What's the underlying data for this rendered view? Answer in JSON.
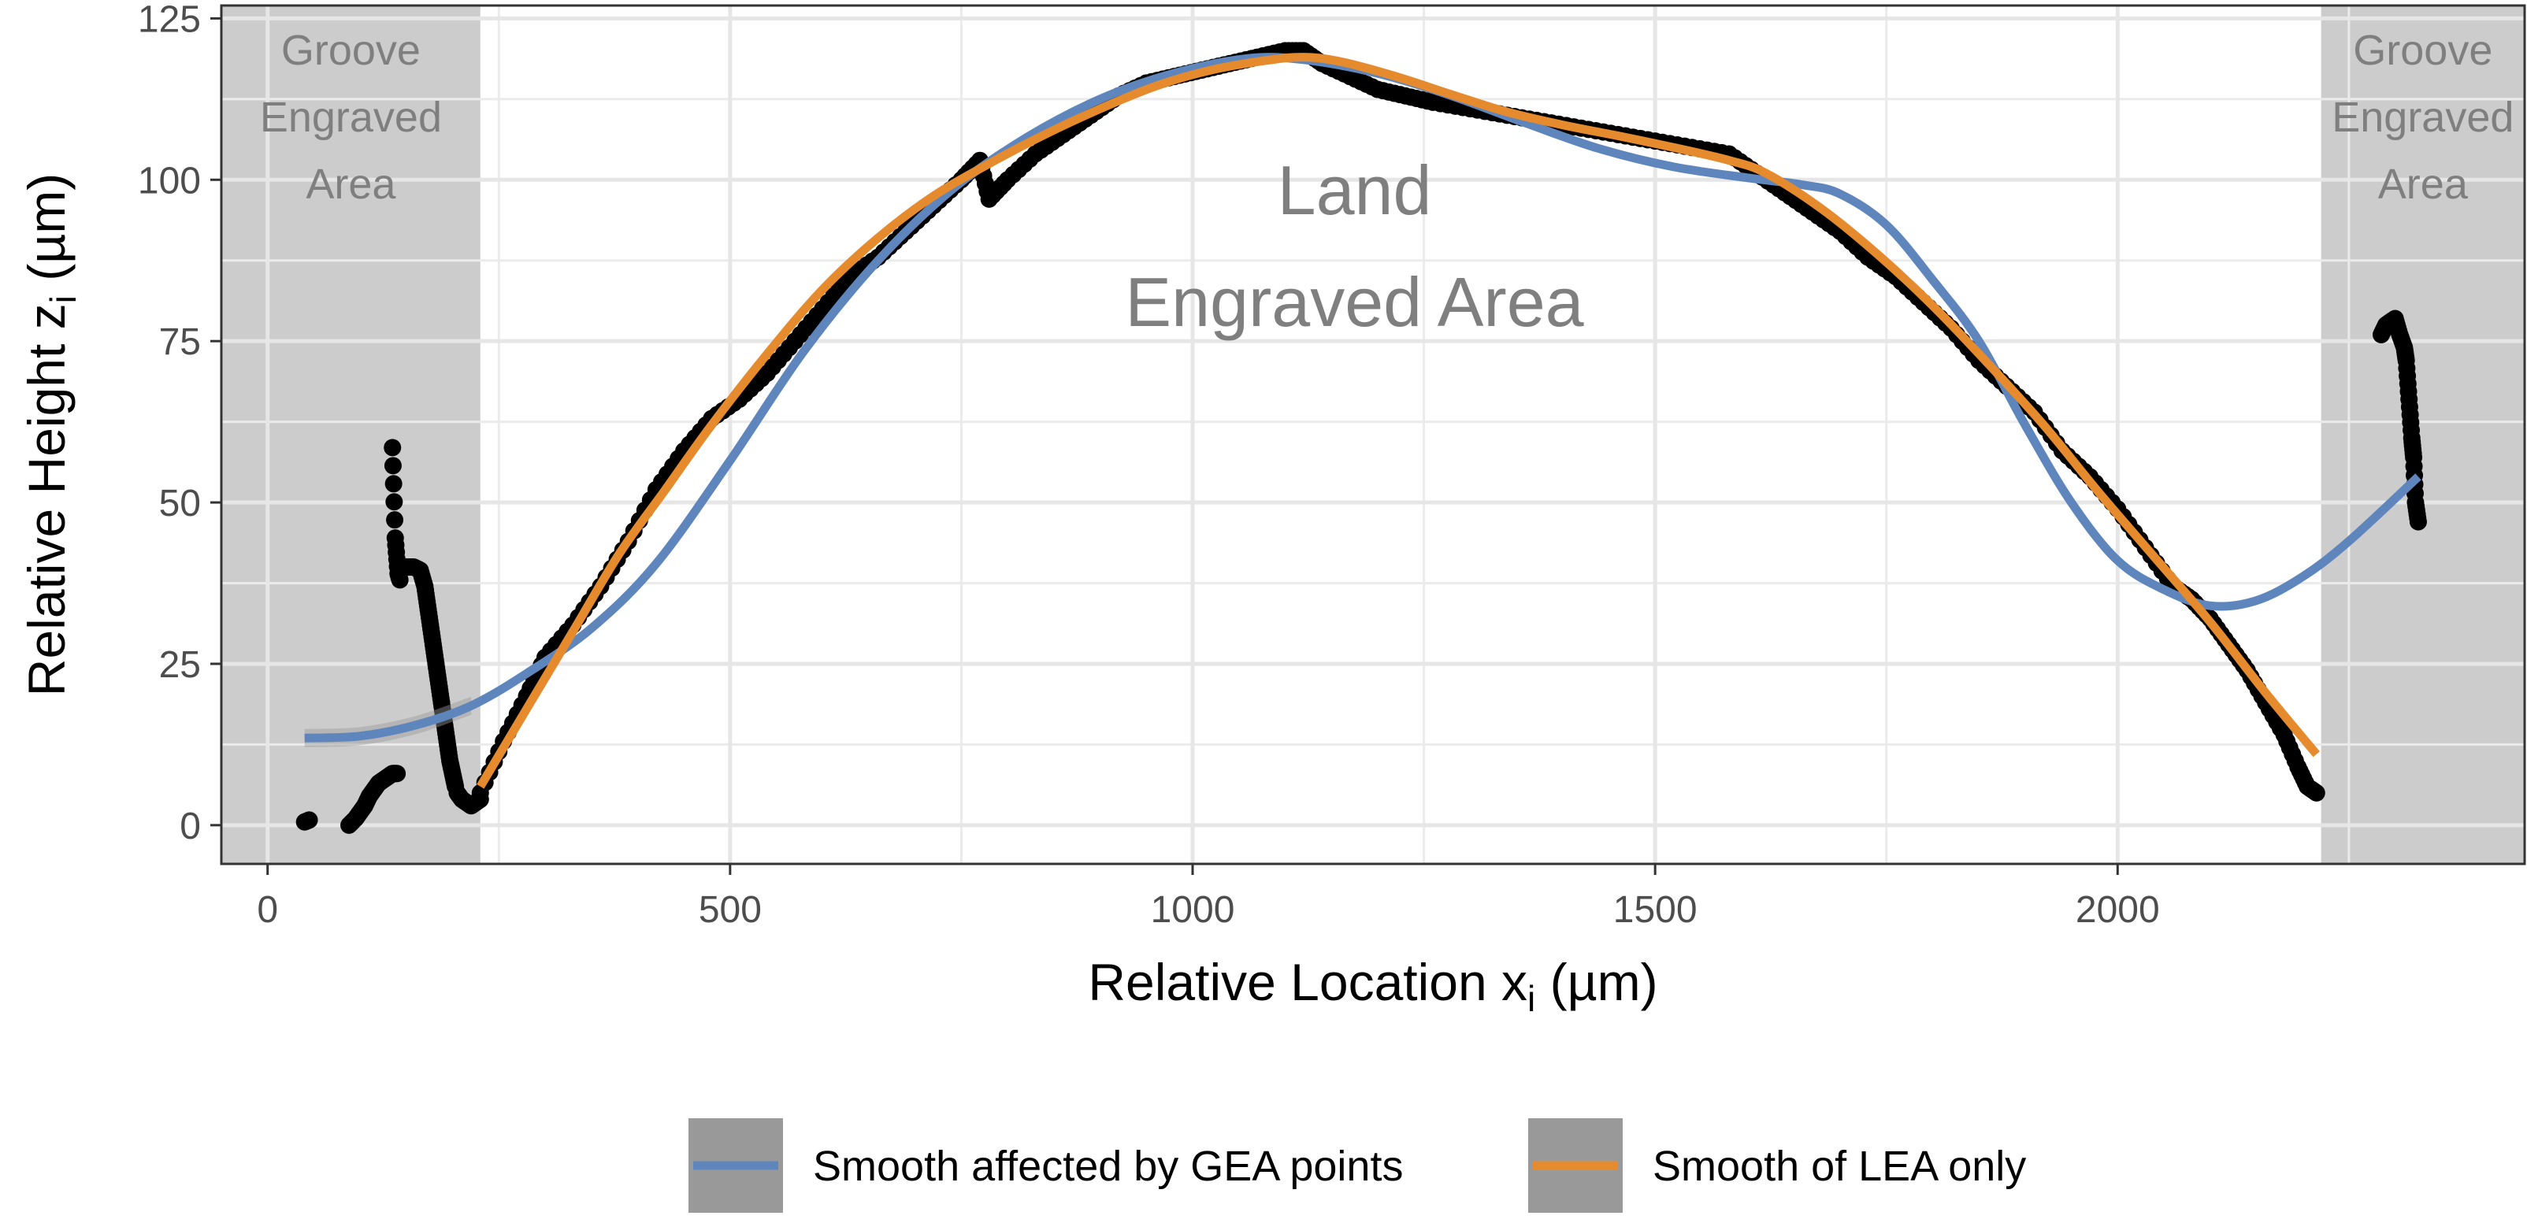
{
  "chart_data": {
    "type": "scatter",
    "xlabel": "Relative Location x",
    "xlabel_sub": "i",
    "xlabel_unit": " (µm)",
    "ylabel": "Relative Height z",
    "ylabel_sub": "i",
    "ylabel_unit": " (µm)",
    "xlim": [
      -50,
      2440
    ],
    "ylim": [
      -6,
      127
    ],
    "x_ticks": [
      0,
      500,
      1000,
      1500,
      2000
    ],
    "y_ticks": [
      0,
      25,
      50,
      75,
      100,
      125
    ],
    "grid": true,
    "legend_position": "bottom",
    "regions": [
      {
        "name": "groove-engraved-area-left",
        "x_range": [
          -50,
          230
        ],
        "label_lines": [
          "Groove",
          "Engraved",
          "Area"
        ],
        "color": "#cccccc"
      },
      {
        "name": "groove-engraved-area-right",
        "x_range": [
          2220,
          2440
        ],
        "label_lines": [
          "Groove",
          "Engraved",
          "Area"
        ],
        "color": "#cccccc"
      }
    ],
    "annotation": {
      "lines": [
        "Land",
        "Engraved Area"
      ],
      "x": 1175,
      "y": 104
    },
    "points": {
      "color": "#000000",
      "segments": [
        {
          "x": [
            40,
            45
          ],
          "y": [
            0.5,
            0.8
          ]
        },
        {
          "x": [
            88,
            95,
            100,
            105,
            110,
            115,
            120,
            125,
            130,
            135,
            140
          ],
          "y": [
            0,
            1,
            2,
            3,
            4.5,
            5.5,
            6.5,
            7,
            7.5,
            8,
            8
          ]
        },
        {
          "x": [
            135,
            138,
            141,
            143
          ],
          "y": [
            58.5,
            44.5,
            39,
            38
          ]
        },
        {
          "x": [
            150,
            158,
            165,
            170,
            173,
            176,
            179,
            182,
            185,
            188,
            191,
            194,
            197,
            200,
            203
          ],
          "y": [
            40,
            40,
            39.5,
            37,
            34,
            31,
            28,
            25,
            22,
            19,
            16,
            13,
            10,
            8,
            6
          ]
        },
        {
          "x": [
            205,
            210,
            215,
            220,
            225,
            230
          ],
          "y": [
            5,
            4,
            3.5,
            3,
            3.5,
            4
          ]
        },
        {
          "x": [
            230,
            255,
            280,
            300,
            330,
            360,
            390,
            420,
            450,
            480,
            510,
            540,
            570,
            600,
            630,
            660,
            690,
            720,
            750,
            770,
            780,
            800,
            830,
            860,
            890,
            920,
            950,
            980,
            1010,
            1040,
            1070,
            1100,
            1120,
            1140,
            1170,
            1200,
            1230,
            1260,
            1300,
            1340,
            1380,
            1420,
            1460,
            1500,
            1540,
            1580,
            1610,
            1640,
            1670,
            1700,
            1730,
            1760,
            1790,
            1820,
            1850,
            1880,
            1910,
            1940,
            1970,
            2000,
            2030,
            2060,
            2080,
            2100,
            2120,
            2140,
            2160,
            2180,
            2195,
            2205,
            2215
          ],
          "y": [
            5,
            13,
            20,
            26,
            31,
            37,
            44,
            52,
            58,
            63,
            66,
            70,
            75,
            80,
            85,
            88,
            92,
            96,
            100,
            103,
            97,
            100,
            104,
            107,
            110,
            113,
            115,
            116,
            117,
            118,
            119,
            120,
            120,
            118,
            116,
            114,
            113,
            112,
            111,
            110,
            109,
            108,
            107,
            106,
            105,
            104,
            101,
            98,
            95,
            92,
            88,
            85,
            81,
            77,
            72,
            68,
            64,
            58,
            54,
            49,
            43,
            37,
            35,
            32,
            28,
            24,
            19,
            14,
            9,
            6,
            5
          ]
        },
        {
          "x": [
            2285,
            2290,
            2295,
            2300,
            2305,
            2310,
            2312,
            2315,
            2318,
            2320,
            2322,
            2325
          ],
          "y": [
            76,
            77.5,
            78,
            78.5,
            76,
            74,
            72,
            66,
            60,
            57,
            50,
            47
          ]
        }
      ]
    },
    "series": [
      {
        "name": "Smooth affected by GEA points",
        "color": "#5e86bd",
        "x": [
          40,
          100,
          160,
          220,
          280,
          350,
          420,
          500,
          580,
          660,
          740,
          820,
          900,
          980,
          1060,
          1120,
          1200,
          1280,
          1360,
          1440,
          1520,
          1600,
          1660,
          1700,
          1750,
          1800,
          1850,
          1900,
          1950,
          2000,
          2050,
          2100,
          2150,
          2200,
          2250,
          2325
        ],
        "y": [
          13.5,
          13.8,
          15.5,
          18.5,
          23.5,
          30.5,
          40.5,
          56.5,
          73.5,
          87.5,
          98.5,
          106.5,
          112.5,
          116.5,
          118.8,
          118.6,
          116.5,
          113,
          108.8,
          104.8,
          102,
          100.3,
          99.2,
          97.8,
          93,
          84.5,
          75,
          62,
          50,
          41,
          36.5,
          34,
          34.8,
          38.5,
          44,
          54
        ]
      },
      {
        "name": "Smooth of LEA only",
        "color": "#e68a2e",
        "x": [
          230,
          280,
          330,
          380,
          430,
          480,
          540,
          600,
          660,
          720,
          780,
          840,
          900,
          960,
          1020,
          1080,
          1120,
          1160,
          1220,
          1280,
          1340,
          1400,
          1460,
          1520,
          1580,
          1620,
          1680,
          1740,
          1800,
          1860,
          1920,
          1980,
          2040,
          2100,
          2160,
          2215
        ],
        "y": [
          6,
          18,
          30,
          42,
          52,
          62,
          73,
          83,
          91,
          97.5,
          102.5,
          107,
          111,
          114.5,
          117,
          118.5,
          119,
          118.3,
          116,
          113.2,
          110.5,
          108.5,
          106.8,
          105,
          103,
          101,
          95.5,
          88.5,
          80.5,
          71.5,
          62,
          51.5,
          41.5,
          31.5,
          20.5,
          11
        ]
      }
    ]
  }
}
